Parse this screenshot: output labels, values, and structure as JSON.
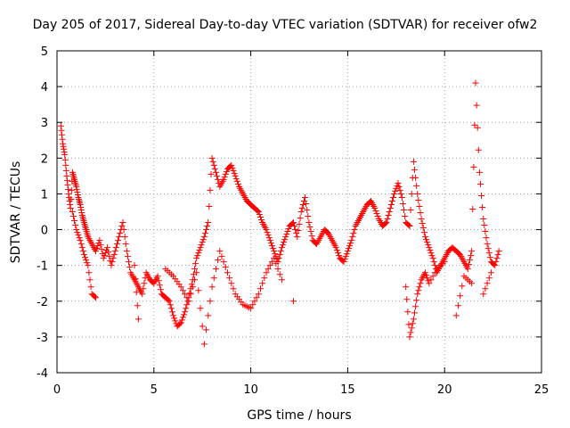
{
  "chart_data": {
    "type": "scatter",
    "title": "Day 205 of 2017, Sidereal Day-to-day VTEC variation (SDTVAR) for receiver ofw2",
    "xlabel": "GPS time / hours",
    "ylabel": "SDTVAR / TECUs",
    "xlim": [
      0,
      25
    ],
    "ylim": [
      -4,
      5
    ],
    "xticks": [
      "0",
      "5",
      "10",
      "15",
      "20",
      "25"
    ],
    "yticks": [
      "-4",
      "-3",
      "-2",
      "-1",
      "0",
      "1",
      "2",
      "3",
      "4",
      "5"
    ],
    "grid": true,
    "marker": "+",
    "series": [
      {
        "name": "SDTVAR",
        "color": "#ff0000",
        "x": [
          0.2,
          0.3,
          0.4,
          0.5,
          0.6,
          0.7,
          0.8,
          0.9,
          1.0,
          1.1,
          1.2,
          1.3,
          1.4,
          1.5,
          1.6,
          1.8,
          2.0,
          2.2,
          2.4,
          2.6,
          2.8,
          3.0,
          3.2,
          3.4,
          3.6,
          3.8,
          4.0,
          4.2,
          4.4,
          4.6,
          4.8,
          5.0,
          5.2,
          5.4,
          5.6,
          5.8,
          6.0,
          6.2,
          6.4,
          6.6,
          6.8,
          7.0,
          7.2,
          7.4,
          7.6,
          7.8,
          8.0,
          8.2,
          8.4,
          8.6,
          8.8,
          9.0,
          9.2,
          9.4,
          9.6,
          9.8,
          10.0,
          10.2,
          10.4,
          10.6,
          10.8,
          11.0,
          11.2,
          11.4,
          11.6,
          11.8,
          12.0,
          12.2,
          12.4,
          12.6,
          12.8,
          13.0,
          13.2,
          13.4,
          13.6,
          13.8,
          14.0,
          14.2,
          14.4,
          14.6,
          14.8,
          15.0,
          15.2,
          15.4,
          15.6,
          15.8,
          16.0,
          16.2,
          16.4,
          16.6,
          16.8,
          17.0,
          17.2,
          17.4,
          17.6,
          17.8,
          18.0,
          18.2,
          18.4,
          18.6,
          18.8,
          19.0,
          19.2,
          19.4,
          19.6,
          19.8,
          20.0,
          20.2,
          20.4,
          20.6,
          20.8,
          21.0,
          21.2,
          21.4,
          21.6,
          21.8,
          22.0,
          22.2,
          22.4,
          22.6,
          22.8
        ],
        "y": [
          2.9,
          2.4,
          2.1,
          1.5,
          1.0,
          0.6,
          1.6,
          1.4,
          1.2,
          0.9,
          0.7,
          0.4,
          0.2,
          0.0,
          -0.2,
          -0.4,
          -0.6,
          -0.3,
          -0.8,
          -0.5,
          -1.0,
          -0.6,
          -0.2,
          0.2,
          -0.6,
          -1.2,
          -1.4,
          -1.6,
          -1.8,
          -1.2,
          -1.4,
          -1.5,
          -1.3,
          -1.8,
          -1.9,
          -2.0,
          -2.4,
          -2.7,
          -2.6,
          -2.3,
          -1.9,
          -1.4,
          -0.8,
          -0.5,
          -0.2,
          0.2,
          2.0,
          1.6,
          1.2,
          1.4,
          1.7,
          1.8,
          1.5,
          1.2,
          1.0,
          0.8,
          0.7,
          0.6,
          0.5,
          0.2,
          0.0,
          -0.3,
          -0.6,
          -0.9,
          -0.5,
          -0.2,
          0.1,
          0.2,
          -0.2,
          0.5,
          0.9,
          0.2,
          -0.3,
          -0.4,
          -0.2,
          0.0,
          -0.1,
          -0.3,
          -0.5,
          -0.8,
          -0.9,
          -0.6,
          -0.3,
          0.1,
          0.3,
          0.5,
          0.7,
          0.8,
          0.6,
          0.3,
          0.1,
          0.2,
          0.6,
          1.0,
          1.3,
          0.9,
          0.2,
          0.1,
          1.9,
          1.0,
          0.3,
          -0.2,
          -0.5,
          -0.8,
          -1.2,
          -1.0,
          -0.8,
          -0.6,
          -0.5,
          -0.6,
          -0.7,
          -0.9,
          -1.1,
          -0.6,
          4.1,
          1.6,
          0.3,
          -0.4,
          -0.9,
          -1.0,
          -0.6
        ],
        "secondary_x": [
          0.8,
          1.0,
          1.2,
          1.4,
          1.6,
          1.8,
          2.0,
          4.0,
          4.2,
          5.6,
          6.0,
          6.4,
          6.8,
          7.2,
          7.6,
          8.0,
          8.4,
          8.8,
          9.2,
          9.6,
          10.0,
          10.4,
          10.8,
          11.2,
          11.6,
          12.2,
          18.0,
          18.2,
          18.4,
          18.6,
          18.8,
          19.0,
          19.2,
          19.6,
          20.0,
          20.6,
          21.0,
          21.4,
          22.0,
          22.4
        ],
        "secondary_y": [
          0.5,
          0.0,
          -0.3,
          -0.7,
          -1.0,
          -1.8,
          -1.9,
          -1.0,
          -2.5,
          -1.1,
          -1.3,
          -1.6,
          -2.0,
          -1.2,
          -3.2,
          -1.6,
          -0.6,
          -1.2,
          -1.8,
          -2.1,
          -2.2,
          -1.8,
          -1.2,
          -0.8,
          -1.4,
          -2.0,
          -1.6,
          -3.0,
          -2.5,
          -1.8,
          -1.4,
          -1.2,
          -1.5,
          -1.1,
          -0.9,
          -2.4,
          -1.3,
          -1.5,
          -1.8,
          -1.2
        ]
      }
    ]
  }
}
